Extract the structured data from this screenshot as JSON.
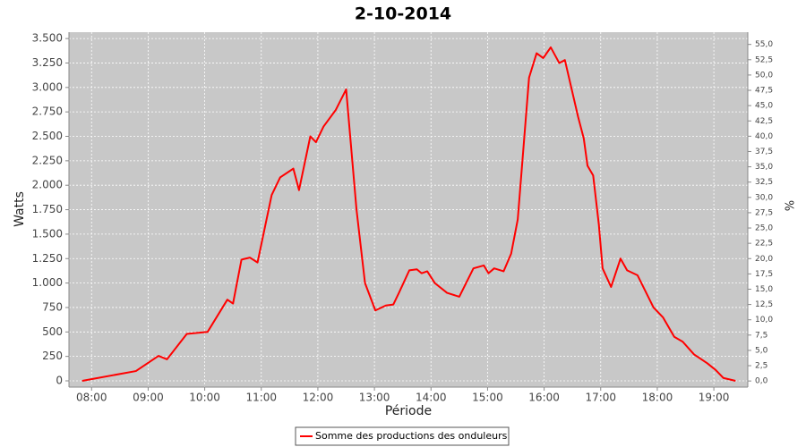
{
  "chart_data": {
    "type": "line",
    "title": "2-10-2014",
    "xlabel": "Période",
    "ylabel": "Watts",
    "y2label": "%",
    "x": [
      "07:50",
      "08:47",
      "09:11",
      "09:20",
      "09:41",
      "10:03",
      "10:24",
      "10:30",
      "10:39",
      "10:48",
      "10:56",
      "11:11",
      "11:20",
      "11:34",
      "11:40",
      "11:52",
      "11:58",
      "12:06",
      "12:19",
      "12:30",
      "12:41",
      "12:50",
      "13:01",
      "13:12",
      "13:20",
      "13:26",
      "13:37",
      "13:45",
      "13:50",
      "13:56",
      "14:04",
      "14:17",
      "14:30",
      "14:45",
      "14:56",
      "15:01",
      "15:07",
      "15:17",
      "15:25",
      "15:32",
      "15:44",
      "15:52",
      "15:59",
      "16:07",
      "16:16",
      "16:22",
      "16:36",
      "16:42",
      "16:46",
      "16:52",
      "16:58",
      "17:02",
      "17:11",
      "17:21",
      "17:28",
      "17:39",
      "17:56",
      "18:06",
      "18:18",
      "18:27",
      "18:39",
      "18:53",
      "19:02",
      "19:10",
      "19:23"
    ],
    "series": [
      {
        "name": "Somme des productions des onduleurs",
        "color": "#ff0000",
        "values": [
          0,
          100,
          255,
          220,
          480,
          500,
          830,
          790,
          1240,
          1260,
          1210,
          1900,
          2080,
          2170,
          1950,
          2500,
          2440,
          2600,
          2770,
          2980,
          1750,
          1000,
          720,
          770,
          780,
          900,
          1130,
          1140,
          1100,
          1120,
          1000,
          900,
          860,
          1150,
          1180,
          1100,
          1150,
          1120,
          1300,
          1650,
          3100,
          3350,
          3300,
          3410,
          3250,
          3280,
          2700,
          2480,
          2200,
          2100,
          1600,
          1150,
          960,
          1250,
          1130,
          1080,
          750,
          650,
          450,
          400,
          270,
          180,
          110,
          30,
          0
        ]
      }
    ],
    "xlim": [
      "07:36",
      "19:36"
    ],
    "xticks": [
      "08:00",
      "09:00",
      "10:00",
      "11:00",
      "12:00",
      "13:00",
      "14:00",
      "15:00",
      "16:00",
      "17:00",
      "18:00",
      "19:00"
    ],
    "ylim": [
      -64,
      3565
    ],
    "yticks": [
      0,
      250,
      500,
      750,
      {
        "value": 1000,
        "label": "1.000"
      },
      {
        "value": 1250,
        "label": "1.250"
      },
      {
        "value": 1500,
        "label": "1.500"
      },
      {
        "value": 1750,
        "label": "1.750"
      },
      {
        "value": 2000,
        "label": "2.000"
      },
      {
        "value": 2250,
        "label": "2.250"
      },
      {
        "value": 2500,
        "label": "2.500"
      },
      {
        "value": 2750,
        "label": "2.750"
      },
      {
        "value": 3000,
        "label": "3.000"
      },
      {
        "value": 3250,
        "label": "3.250"
      },
      {
        "value": 3500,
        "label": "3.500"
      }
    ],
    "y2lim": [
      -1,
      57
    ],
    "y2ticks": [
      {
        "value": 0,
        "label": "0,0"
      },
      {
        "value": 2.5,
        "label": "2,5"
      },
      {
        "value": 5,
        "label": "5,0"
      },
      {
        "value": 7.5,
        "label": "7,5"
      },
      {
        "value": 10,
        "label": "10,0"
      },
      {
        "value": 12.5,
        "label": "12,5"
      },
      {
        "value": 15,
        "label": "15,0"
      },
      {
        "value": 17.5,
        "label": "17,5"
      },
      {
        "value": 20,
        "label": "20,0"
      },
      {
        "value": 22.5,
        "label": "22,5"
      },
      {
        "value": 25,
        "label": "25,0"
      },
      {
        "value": 27.5,
        "label": "27,5"
      },
      {
        "value": 30,
        "label": "30,0"
      },
      {
        "value": 32.5,
        "label": "32,5"
      },
      {
        "value": 35,
        "label": "35,0"
      },
      {
        "value": 37.5,
        "label": "37,5"
      },
      {
        "value": 40,
        "label": "40,0"
      },
      {
        "value": 42.5,
        "label": "42,5"
      },
      {
        "value": 45,
        "label": "45,0"
      },
      {
        "value": 47.5,
        "label": "47,5"
      },
      {
        "value": 50,
        "label": "50,0"
      },
      {
        "value": 52.5,
        "label": "52,5"
      },
      {
        "value": 55,
        "label": "55,0"
      }
    ],
    "grid": true
  }
}
